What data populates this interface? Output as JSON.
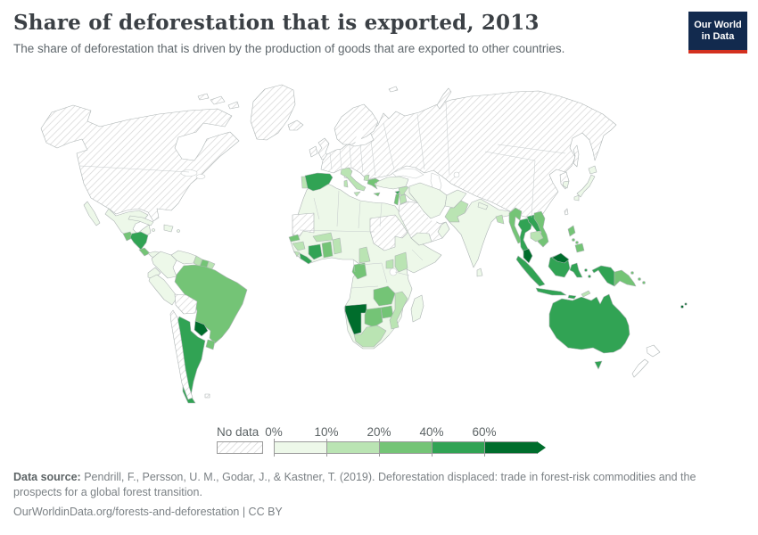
{
  "header": {
    "title": "Share of deforestation that is exported, 2013",
    "subtitle": "The share of deforestation that is driven by the production of goods that are exported to other countries.",
    "logo_line1": "Our World",
    "logo_line2": "in Data",
    "logo_bg": "#122a4e",
    "logo_accent": "#d3301f"
  },
  "footer": {
    "source_label": "Data source:",
    "source_text": " Pendrill, F., Persson, U. M., Godar, J., & Kastner, T. (2019). Deforestation displaced: trade in forest-risk commodities and the prospects for a global forest transition.",
    "link_text": "OurWorldinData.org/forests-and-deforestation | CC BY"
  },
  "legend": {
    "no_data_label": "No data",
    "bins": [
      {
        "label": "0%",
        "color": "#edf8e9"
      },
      {
        "label": "10%",
        "color": "#bae4b3"
      },
      {
        "label": "20%",
        "color": "#74c476"
      },
      {
        "label": "40%",
        "color": "#31a354"
      },
      {
        "label": "60%",
        "color": "#006d2c"
      }
    ],
    "segment_width": 59,
    "arrow_color": "#006d2c"
  },
  "chart_data": {
    "type": "heatmap",
    "title": "Share of deforestation that is exported, 2013",
    "legend_position": "bottom",
    "value_bins": [
      "0-10%",
      "10-20%",
      "20-40%",
      "40-60%",
      "60%+",
      "no-data"
    ],
    "bin_colors": {
      "no-data": "hatch",
      "0-10%": "#edf8e9",
      "10-20%": "#bae4b3",
      "20-40%": "#74c476",
      "40-60%": "#31a354",
      "60%+": "#006d2c",
      "none": "#ffffff"
    },
    "regions": {
      "greenland": "no-data",
      "north-america": "no-data",
      "arctic-islands-a": "no-data",
      "arctic-islands-b": "no-data",
      "arctic-islands-c": "no-data",
      "baja-california": "0-10%",
      "mexico": "0-10%",
      "guatemala": "20-40%",
      "honduras-nicaragua": "40-60%",
      "costa-rica": "20-40%",
      "panama": "0-10%",
      "cuba": "0-10%",
      "hispaniola": "0-10%",
      "jamaica": "0-10%",
      "puerto-rico": "0-10%",
      "colombia": "0-10%",
      "venezuela": "0-10%",
      "guyana": "10-20%",
      "suriname": "20-40%",
      "french-guiana": "10-20%",
      "ecuador": "0-10%",
      "peru": "0-10%",
      "bolivia": "no-data",
      "brazil": "20-40%",
      "paraguay": "60%+",
      "argentina": "40-60%",
      "chile": "no-data",
      "uruguay": "20-40%",
      "falklands": "no-data",
      "iceland": "no-data",
      "ireland": "no-data",
      "united-kingdom": "no-data",
      "scandinavia": "no-data",
      "svalbard": "no-data",
      "novaya-zemlya": "no-data",
      "eurasia": "no-data",
      "korea-north": "no-data",
      "sakhalin": "no-data",
      "portugal": "10-20%",
      "spain": "40-60%",
      "corsica": "no-data",
      "italy": "10-20%",
      "sicily": "10-20%",
      "sardinia": "10-20%",
      "albania": "10-20%",
      "greece": "20-40%",
      "crete": "20-40%",
      "turkey": "0-10%",
      "cyprus": "40-60%",
      "syria": "10-20%",
      "lebanon-israel": "20-40%",
      "jordan": "10-20%",
      "iraq": "0-10%",
      "saudi-arabia": "no-data",
      "yemen": "0-10%",
      "oman": "0-10%",
      "qatar-uae": "0-10%",
      "iran": "0-10%",
      "afghanistan": "0-10%",
      "pakistan": "10-20%",
      "india": "0-10%",
      "nepal": "0-10%",
      "bangladesh": "10-20%",
      "sri-lanka": "0-10%",
      "myanmar": "20-40%",
      "thailand": "40-60%",
      "laos": "40-60%",
      "vietnam": "20-40%",
      "cambodia": "10-20%",
      "malaysia-peninsular": "60%+",
      "sumatra": "40-60%",
      "java": "40-60%",
      "borneo-kalimantan": "40-60%",
      "malaysia-borneo": "60%+",
      "sulawesi": "40-60%",
      "maluku-a": "40-60%",
      "maluku-b": "40-60%",
      "lesser-sunda": "40-60%",
      "timor": "10-20%",
      "west-papua": "40-60%",
      "papua-new-guinea": "20-40%",
      "new-britain": "20-40%",
      "solomon-a": "20-40%",
      "solomon-b": "20-40%",
      "philippines-luzon": "20-40%",
      "philippines-visayas-a": "20-40%",
      "philippines-visayas-b": "20-40%",
      "philippines-mindanao": "20-40%",
      "taiwan": "no-data",
      "south-korea": "0-10%",
      "japan-hokkaido": "0-10%",
      "japan-honshu": "0-10%",
      "japan-kyushu": "0-10%",
      "africa": "0-10%",
      "western-sahara-mauritania": "no-data",
      "senegal": "20-40%",
      "guinea": "10-20%",
      "sierra-leone": "10-20%",
      "liberia": "40-60%",
      "cote-divoire": "40-60%",
      "ghana": "20-40%",
      "togo-benin": "10-20%",
      "burkina-faso": "10-20%",
      "cameroon": "10-20%",
      "gabon-congo": "20-40%",
      "sudan-region": "no-data",
      "uganda": "10-20%",
      "kenya": "10-20%",
      "zambia": "20-40%",
      "zimbabwe": "20-40%",
      "mozambique": "10-20%",
      "namibia": "60%+",
      "botswana": "20-40%",
      "south-africa": "10-20%",
      "madagascar": "0-10%",
      "australia": "40-60%",
      "tasmania": "40-60%",
      "new-zealand-north": "none",
      "new-zealand-south": "none",
      "fiji-a": "60%+",
      "fiji-b": "60%+"
    }
  }
}
